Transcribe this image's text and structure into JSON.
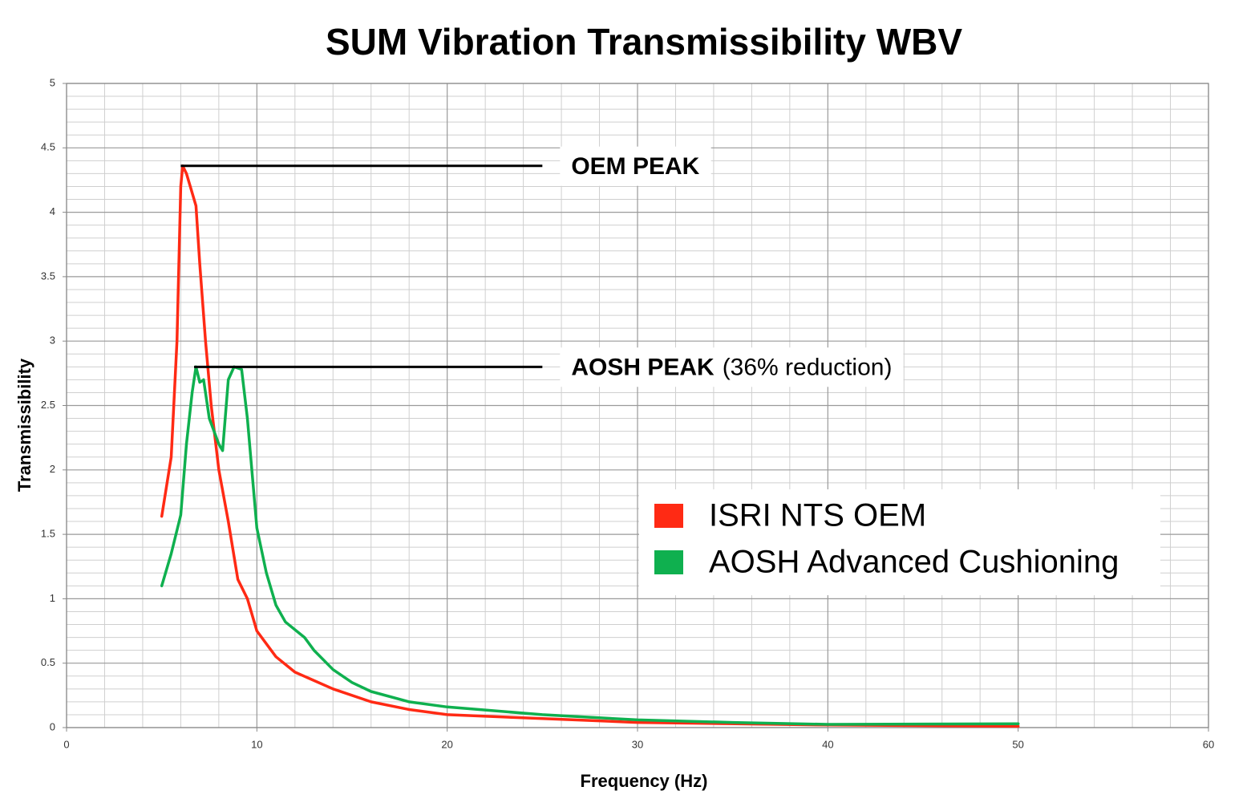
{
  "chart_data": {
    "type": "line",
    "title": "SUM Vibration Transmissibility WBV",
    "x_label": "Frequency (Hz)",
    "y_label": "Transmissibility",
    "xlim": [
      0,
      60
    ],
    "xticks": [
      0,
      10,
      20,
      30,
      40,
      50,
      60
    ],
    "ylim": [
      0,
      5
    ],
    "yticks": [
      0,
      0.5,
      1,
      1.5,
      2,
      2.5,
      3,
      3.5,
      4,
      4.5,
      5
    ],
    "grid": true,
    "legend": "right",
    "series": [
      {
        "name": "ISRI NTS OEM",
        "color": "#ff2a14",
        "x": [
          5,
          5.5,
          5.8,
          6,
          6.1,
          6.3,
          6.5,
          6.8,
          7,
          7.3,
          7.6,
          8,
          8.5,
          9,
          9.5,
          10,
          11,
          12,
          14,
          16,
          18,
          20,
          25,
          30,
          40,
          50
        ],
        "values": [
          1.64,
          2.1,
          3.0,
          4.2,
          4.36,
          4.3,
          4.2,
          4.05,
          3.6,
          3.0,
          2.5,
          2.0,
          1.6,
          1.15,
          1.0,
          0.75,
          0.55,
          0.43,
          0.3,
          0.2,
          0.14,
          0.1,
          0.07,
          0.04,
          0.02,
          0.01
        ]
      },
      {
        "name": "AOSH Advanced Cushioning",
        "color": "#0fb04f",
        "x": [
          5,
          5.5,
          6,
          6.3,
          6.6,
          6.8,
          7,
          7.2,
          7.5,
          8,
          8.2,
          8.5,
          8.8,
          9.2,
          9.5,
          10,
          10.5,
          11,
          11.5,
          12.5,
          13,
          14,
          15,
          16,
          18,
          20,
          25,
          30,
          35,
          40,
          50
        ],
        "values": [
          1.1,
          1.35,
          1.65,
          2.2,
          2.6,
          2.8,
          2.68,
          2.7,
          2.4,
          2.2,
          2.15,
          2.7,
          2.8,
          2.78,
          2.4,
          1.55,
          1.2,
          0.95,
          0.82,
          0.7,
          0.6,
          0.45,
          0.35,
          0.28,
          0.2,
          0.16,
          0.1,
          0.06,
          0.04,
          0.025,
          0.03
        ]
      }
    ],
    "annotations": [
      {
        "text": "OEM PEAK",
        "y": 4.36,
        "x_start": 6,
        "x_end": 25
      },
      {
        "text": "AOSH PEAK",
        "note": "(36% reduction)",
        "y": 2.8,
        "x_start": 6.7,
        "x_end": 25
      }
    ]
  }
}
